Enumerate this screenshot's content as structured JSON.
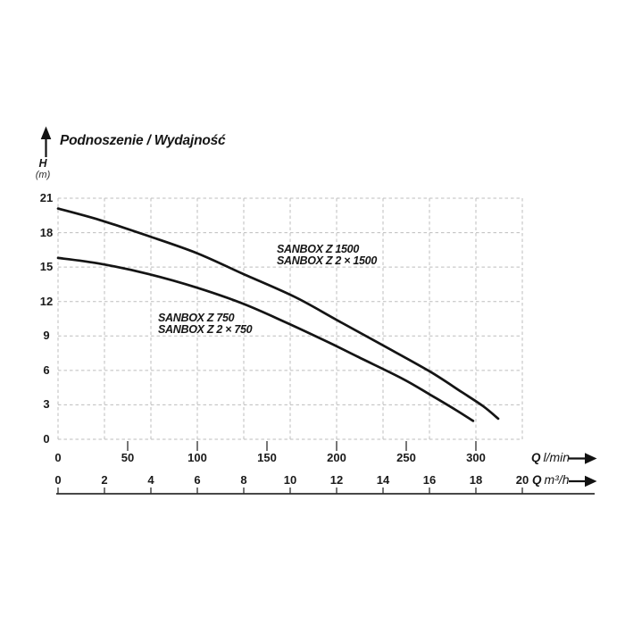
{
  "chart_data": {
    "type": "line",
    "title": "Podnoszenie / Wydajność",
    "y_axis": {
      "symbol": "H",
      "unit": "(m)"
    },
    "x_axis_primary": {
      "symbol": "Q",
      "unit": "l/min"
    },
    "x_axis_secondary": {
      "symbol": "Q",
      "unit": "m³/h"
    },
    "ylim": [
      0,
      21
    ],
    "xlim_lmin": [
      0,
      333
    ],
    "xlim_m3h": [
      0,
      20
    ],
    "grid": true,
    "grid_style": "dashed",
    "y_ticks": [
      0,
      3,
      6,
      9,
      12,
      15,
      18,
      21
    ],
    "x_lmin_ticks": [
      0,
      50,
      100,
      150,
      200,
      250,
      300
    ],
    "x_m3h_ticks": [
      0,
      2,
      4,
      6,
      8,
      10,
      12,
      14,
      16,
      18,
      20
    ],
    "series": [
      {
        "name": "SANBOX Z 1500",
        "label_lines": [
          "SANBOX Z 1500",
          "SANBOX Z 2 × 1500"
        ],
        "color": "#141414",
        "points_q_lmin_h_m": [
          [
            0,
            20.1
          ],
          [
            30,
            19.1
          ],
          [
            65,
            17.7
          ],
          [
            100,
            16.2
          ],
          [
            133,
            14.4
          ],
          [
            170,
            12.4
          ],
          [
            200,
            10.4
          ],
          [
            233,
            8.2
          ],
          [
            267,
            5.9
          ],
          [
            290,
            4.1
          ],
          [
            305,
            2.9
          ],
          [
            316,
            1.8
          ]
        ]
      },
      {
        "name": "SANBOX Z 750",
        "label_lines": [
          "SANBOX Z 750",
          "SANBOX Z 2 × 750"
        ],
        "color": "#141414",
        "points_q_lmin_h_m": [
          [
            0,
            15.8
          ],
          [
            30,
            15.3
          ],
          [
            65,
            14.4
          ],
          [
            100,
            13.2
          ],
          [
            133,
            11.8
          ],
          [
            165,
            10.1
          ],
          [
            195,
            8.4
          ],
          [
            215,
            7.2
          ],
          [
            247,
            5.3
          ],
          [
            267,
            3.9
          ],
          [
            285,
            2.6
          ],
          [
            298,
            1.6
          ]
        ]
      }
    ],
    "colors": {
      "curve": "#141414",
      "grid": "#bdbdbd",
      "text": "#161616",
      "background": "#ffffff"
    }
  }
}
